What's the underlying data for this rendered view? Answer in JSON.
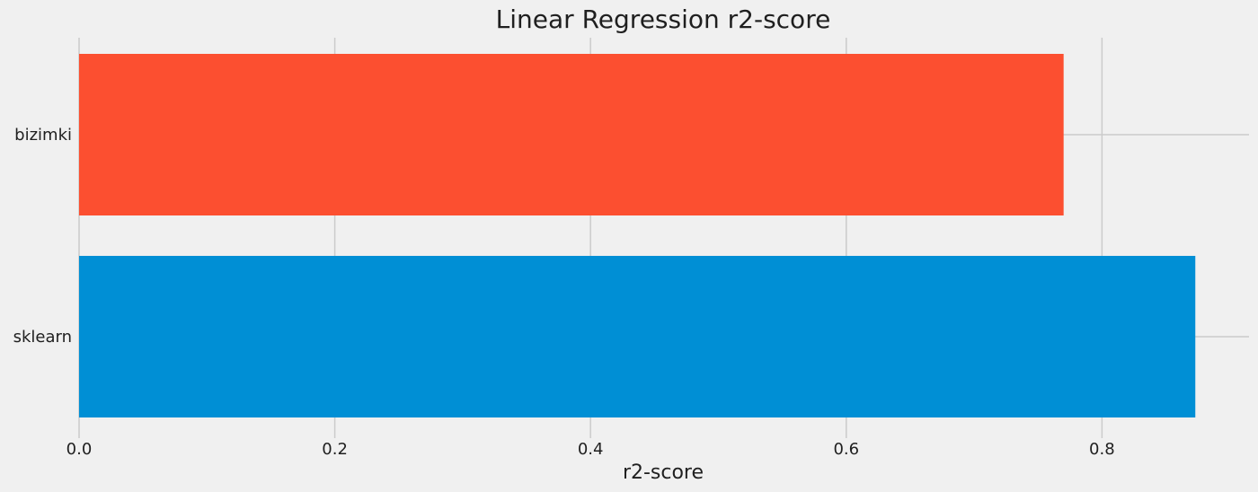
{
  "chart_data": {
    "type": "bar",
    "orientation": "horizontal",
    "title": "Linear Regression r2-score",
    "xlabel": "r2-score",
    "ylabel": "",
    "categories": [
      "bizimki",
      "sklearn"
    ],
    "values": [
      0.77,
      0.873
    ],
    "xlim": [
      0,
      0.915
    ],
    "xticks": [
      0.0,
      0.2,
      0.4,
      0.6,
      0.8
    ],
    "xtick_labels": [
      "0.0",
      "0.2",
      "0.4",
      "0.6",
      "0.8"
    ],
    "colors": [
      "#fc4f30",
      "#008fd5"
    ],
    "grid": true,
    "legend": "none"
  }
}
